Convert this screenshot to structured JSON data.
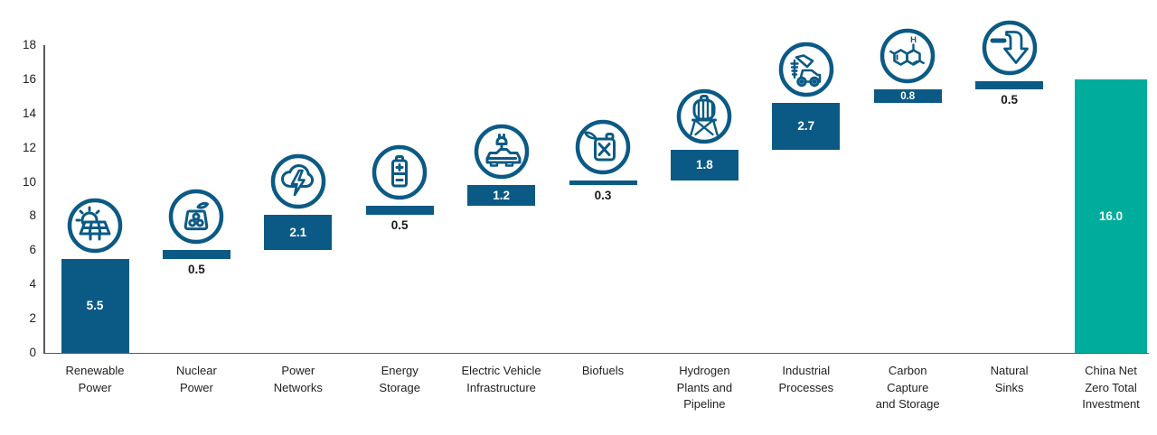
{
  "chart_data": {
    "type": "bar",
    "subtype": "waterfall",
    "title": "",
    "xlabel": "",
    "ylabel": "",
    "ylim": [
      0,
      18
    ],
    "grid": false,
    "legend": "none",
    "yticks": [
      0,
      2,
      4,
      6,
      8,
      10,
      12,
      14,
      16,
      18
    ],
    "categories": [
      "Renewable Power",
      "Nuclear Power",
      "Power Networks",
      "Energy Storage",
      "Electric Vehicle Infrastructure",
      "Biofuels",
      "Hydrogen Plants and Pipeline",
      "Industrial Processes",
      "Carbon Capture and Storage",
      "Natural Sinks",
      "China Net Zero Total Investment"
    ],
    "values": [
      5.5,
      0.5,
      2.1,
      0.5,
      1.2,
      0.3,
      1.8,
      2.7,
      0.8,
      0.5,
      16.0
    ],
    "items": [
      {
        "label": "Renewable Power",
        "label_lines": [
          "Renewable",
          "Power"
        ],
        "value": 5.5,
        "value_label": "5.5",
        "start": 0,
        "end": 5.5,
        "type": "segment",
        "label_position": "inside",
        "icon": "solar-panel-icon"
      },
      {
        "label": "Nuclear Power",
        "label_lines": [
          "Nuclear",
          "Power"
        ],
        "value": 0.5,
        "value_label": "0.5",
        "start": 5.5,
        "end": 6.0,
        "type": "segment",
        "label_position": "below",
        "icon": "nuclear-plant-icon"
      },
      {
        "label": "Power Networks",
        "label_lines": [
          "Power",
          "Networks"
        ],
        "value": 2.1,
        "value_label": "2.1",
        "start": 6.0,
        "end": 8.1,
        "type": "segment",
        "label_position": "inside",
        "icon": "storm-cloud-lightning-icon"
      },
      {
        "label": "Energy Storage",
        "label_lines": [
          "Energy",
          "Storage"
        ],
        "value": 0.5,
        "value_label": "0.5",
        "start": 8.1,
        "end": 8.6,
        "type": "segment",
        "label_position": "below",
        "icon": "battery-icon"
      },
      {
        "label": "Electric Vehicle Infrastructure",
        "label_lines": [
          "Electric Vehicle",
          "Infrastructure"
        ],
        "value": 1.2,
        "value_label": "1.2",
        "start": 8.6,
        "end": 9.8,
        "type": "segment",
        "label_position": "inside",
        "icon": "ev-charging-plug-icon"
      },
      {
        "label": "Biofuels",
        "label_lines": [
          "Biofuels"
        ],
        "value": 0.3,
        "value_label": "0.3",
        "start": 9.8,
        "end": 10.1,
        "type": "segment",
        "label_position": "below",
        "icon": "fuel-can-icon"
      },
      {
        "label": "Hydrogen Plants and Pipeline",
        "label_lines": [
          "Hydrogen",
          "Plants and",
          "Pipeline"
        ],
        "value": 1.8,
        "value_label": "1.8",
        "start": 10.1,
        "end": 11.9,
        "type": "segment",
        "label_position": "inside",
        "icon": "water-tower-icon"
      },
      {
        "label": "Industrial Processes",
        "label_lines": [
          "Industrial",
          "Processes"
        ],
        "value": 2.7,
        "value_label": "2.7",
        "start": 11.9,
        "end": 14.6,
        "type": "segment",
        "label_position": "inside",
        "icon": "drilling-rig-icon"
      },
      {
        "label": "Carbon Capture and Storage",
        "label_lines": [
          "Carbon",
          "Capture",
          "and Storage"
        ],
        "value": 0.8,
        "value_label": "0.8",
        "start": 14.6,
        "end": 15.4,
        "type": "segment",
        "label_position": "inside",
        "icon": "molecule-icon"
      },
      {
        "label": "Natural Sinks",
        "label_lines": [
          "Natural",
          "Sinks"
        ],
        "value": 0.5,
        "value_label": "0.5",
        "start": 15.4,
        "end": 15.9,
        "type": "segment",
        "label_position": "below",
        "icon": "sequestration-arrow-icon"
      },
      {
        "label": "China Net Zero Total Investment",
        "label_lines": [
          "China Net",
          "Zero Total",
          "Investment"
        ],
        "value": 16.0,
        "value_label": "16.0",
        "start": 0,
        "end": 16.0,
        "type": "total",
        "label_position": "inside",
        "icon": null
      }
    ],
    "colors": {
      "segment": "#0B5A85",
      "total": "#00AC9B",
      "value_inside_text": "#FFFFFF",
      "value_below_text": "#1A1A1A",
      "axis_line": "#58595B",
      "tick_text": "#231F20",
      "category_text": "#222222",
      "icon_stroke": "#0B5A85"
    }
  }
}
